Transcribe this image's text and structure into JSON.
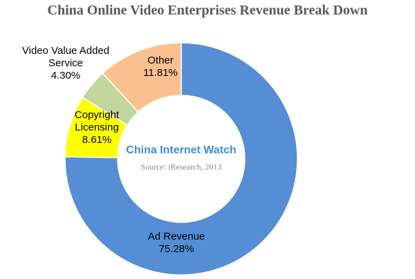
{
  "chart_data": {
    "type": "donut",
    "title": "China Online Video Enterprises Revenue Break Down",
    "categories": [
      "Ad Revenue",
      "Copyright Licensing",
      "Video Value Added Service",
      "Other"
    ],
    "values": [
      75.28,
      8.61,
      4.3,
      11.81
    ],
    "value_labels": [
      "75.28%",
      "8.61%",
      "4.30%",
      "11.81%"
    ],
    "colors": [
      "#558ed5",
      "#ffff00",
      "#c3d69b",
      "#fac090"
    ],
    "watermark": "China Internet Watch",
    "source": "Source: iResearch, 2013"
  }
}
